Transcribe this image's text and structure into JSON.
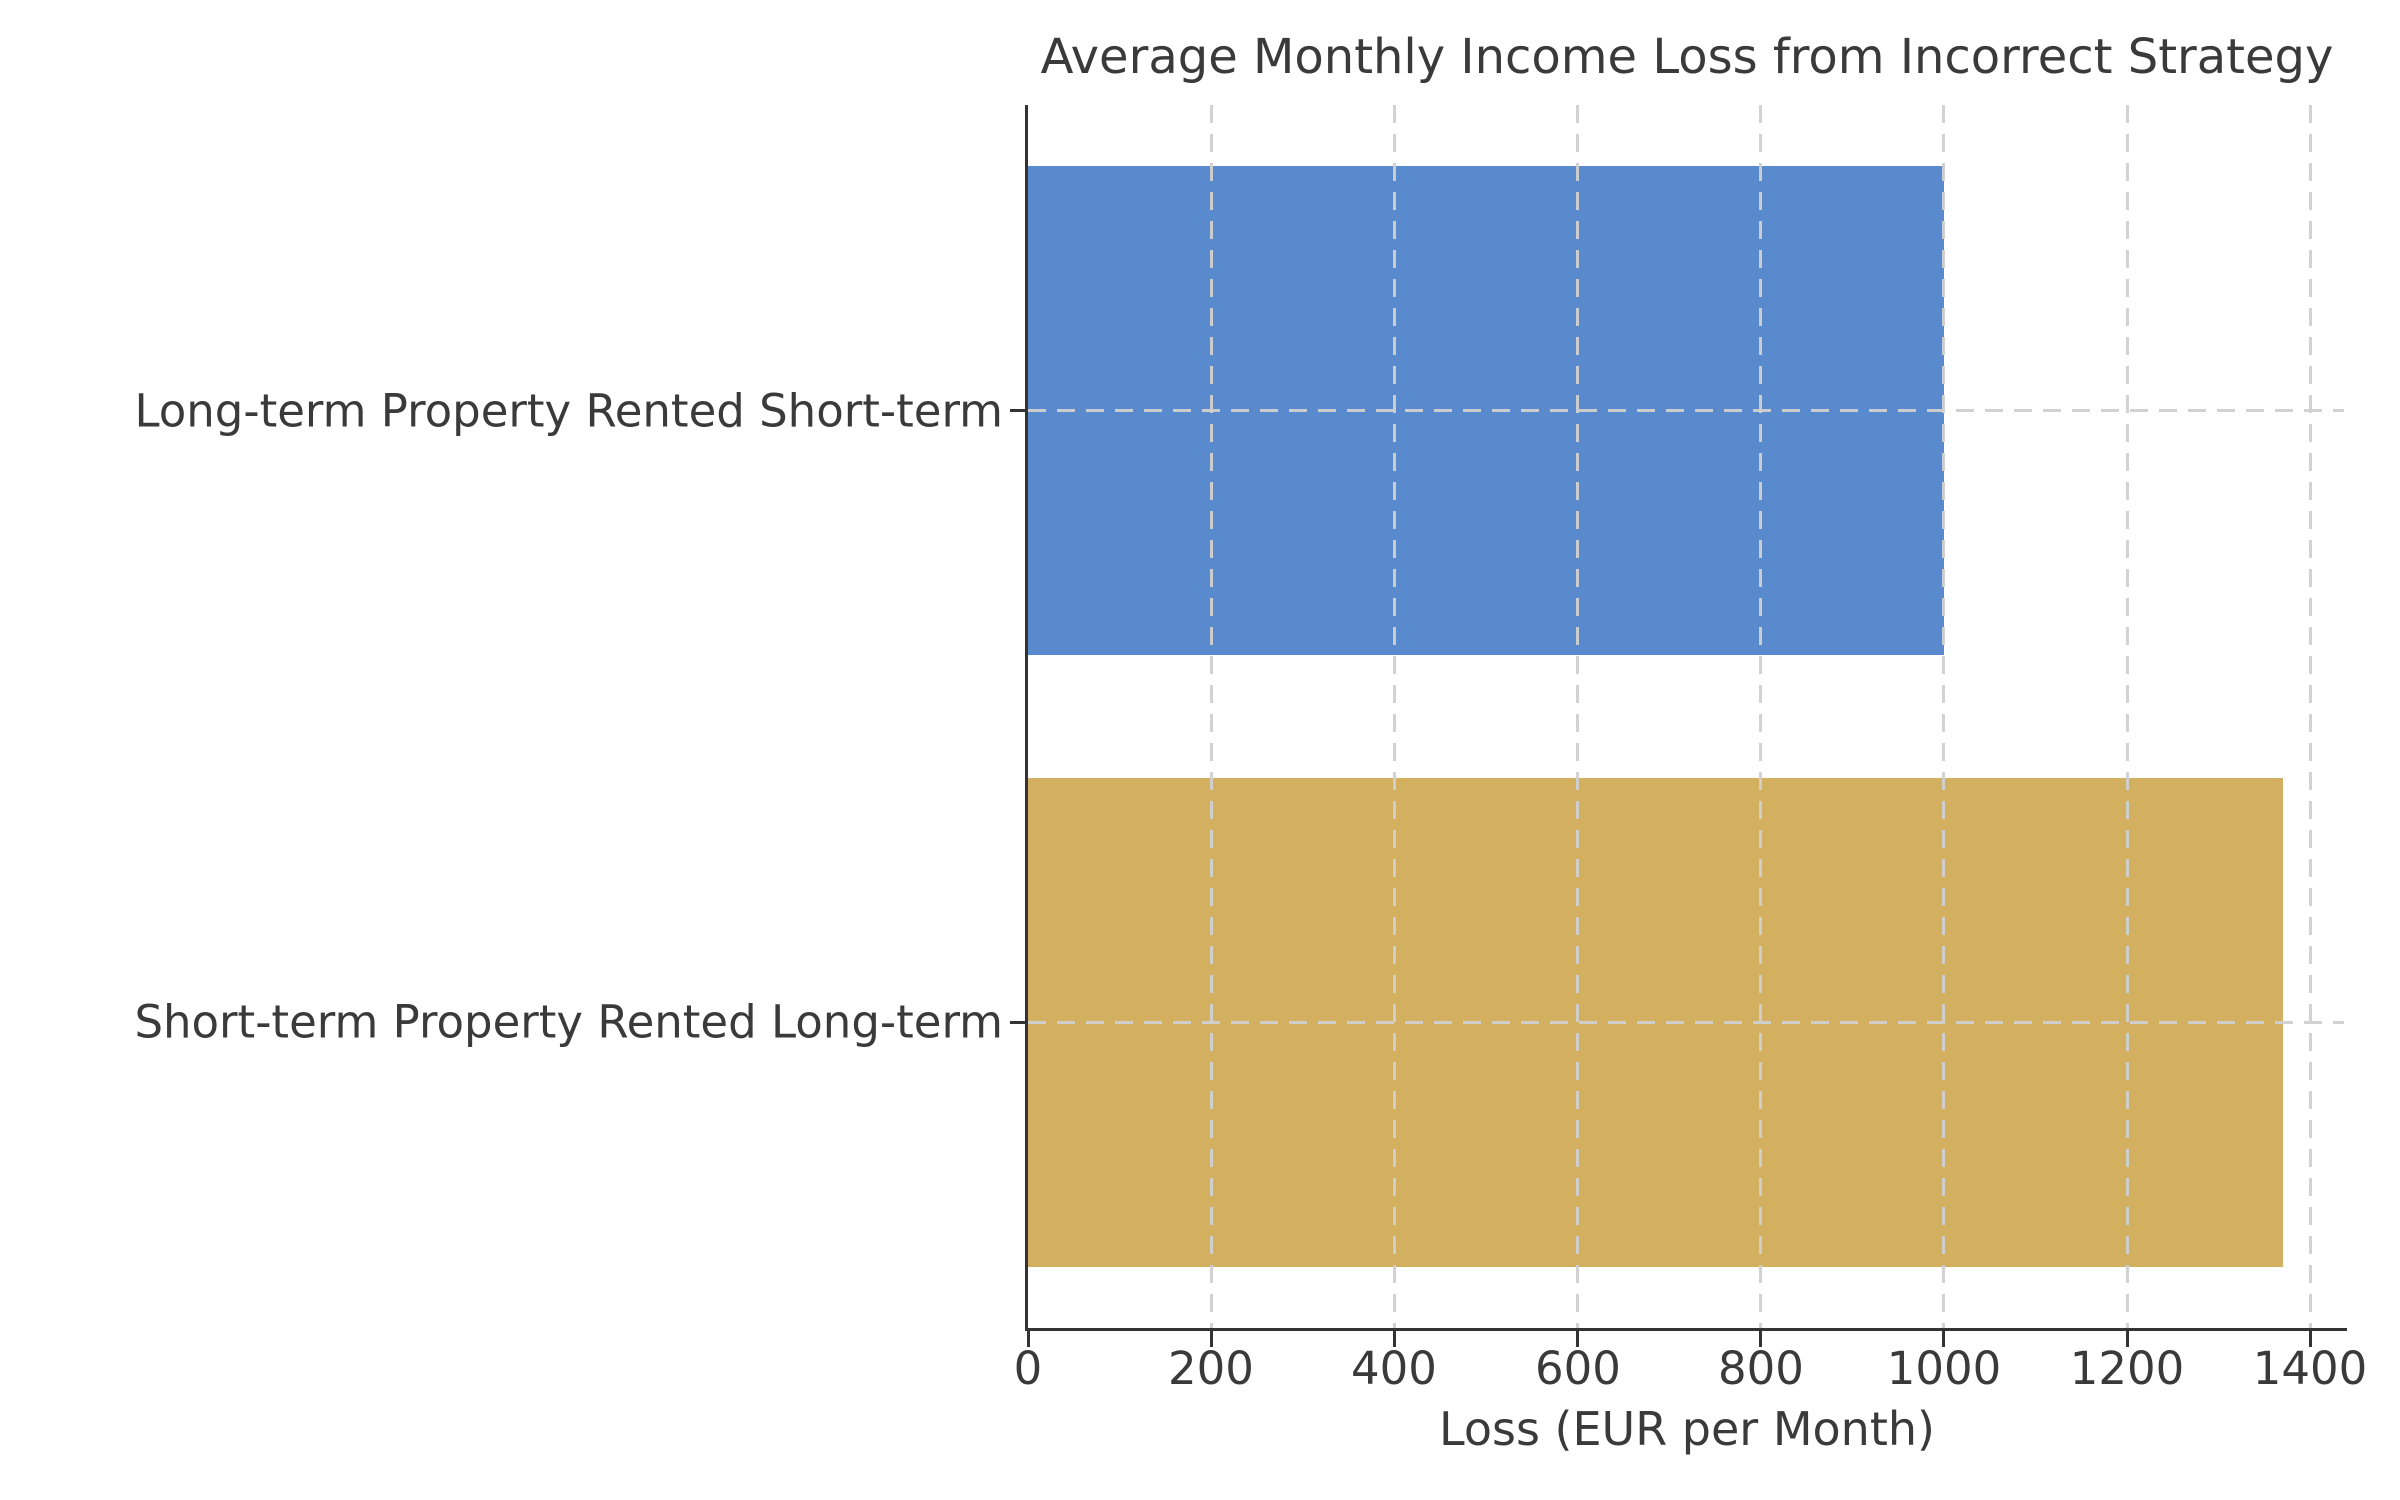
{
  "chart_data": {
    "type": "bar",
    "orientation": "horizontal",
    "title": "Average Monthly Income Loss from Incorrect Strategy",
    "categories": [
      "Long-term Property Rented Short-term",
      "Short-term Property Rented Long-term"
    ],
    "values": [
      1000,
      1370
    ],
    "bar_colors": [
      "#5a8ace",
      "#d3b05f"
    ],
    "xlabel": "Loss (EUR per Month)",
    "ylabel": "",
    "xticks": [
      0,
      200,
      400,
      600,
      800,
      1000,
      1200,
      1400
    ],
    "xlim": [
      0,
      1440
    ],
    "grid": {
      "style": "dashed",
      "color": "#d0d0d0",
      "drawn_over_bars": true
    },
    "legend": "none",
    "axis_color": "#333333",
    "text_color": "#3a3a3a",
    "background": "#ffffff"
  }
}
